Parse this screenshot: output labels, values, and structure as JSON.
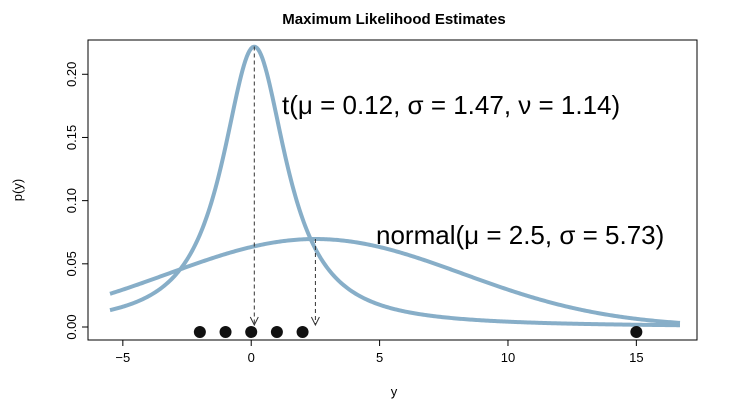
{
  "chart_data": {
    "type": "line",
    "title": "Maximum Likelihood Estimates",
    "xlabel": "y",
    "ylabel": "p(y)",
    "xlim": [
      -5.5,
      16.7
    ],
    "ylim": [
      0,
      0.22
    ],
    "xticks": [
      -5,
      0,
      5,
      10,
      15
    ],
    "xtick_labels": [
      "−5",
      "0",
      "5",
      "10",
      "15"
    ],
    "yticks": [
      0,
      0.05,
      0.1,
      0.15,
      0.2
    ],
    "ytick_labels": [
      "0.00",
      "0.05",
      "0.10",
      "0.15",
      "0.20"
    ],
    "data_points": [
      -2,
      -1,
      0,
      1,
      2,
      15
    ],
    "line_color": "#87AEC8",
    "point_color": "#111111",
    "series": [
      {
        "name": "t",
        "distribution": "student-t",
        "params": {
          "mu": 0.12,
          "sigma": 1.47,
          "nu": 1.14
        },
        "annotation": "t(μ = 0.12, σ = 1.47, ν = 1.14)",
        "mode_x": 0.12,
        "peak_y": 0.222
      },
      {
        "name": "normal",
        "distribution": "normal",
        "params": {
          "mu": 2.5,
          "sigma": 5.73
        },
        "annotation": "normal(μ = 2.5, σ = 5.73)",
        "mode_x": 2.5,
        "peak_y": 0.0696
      }
    ]
  }
}
